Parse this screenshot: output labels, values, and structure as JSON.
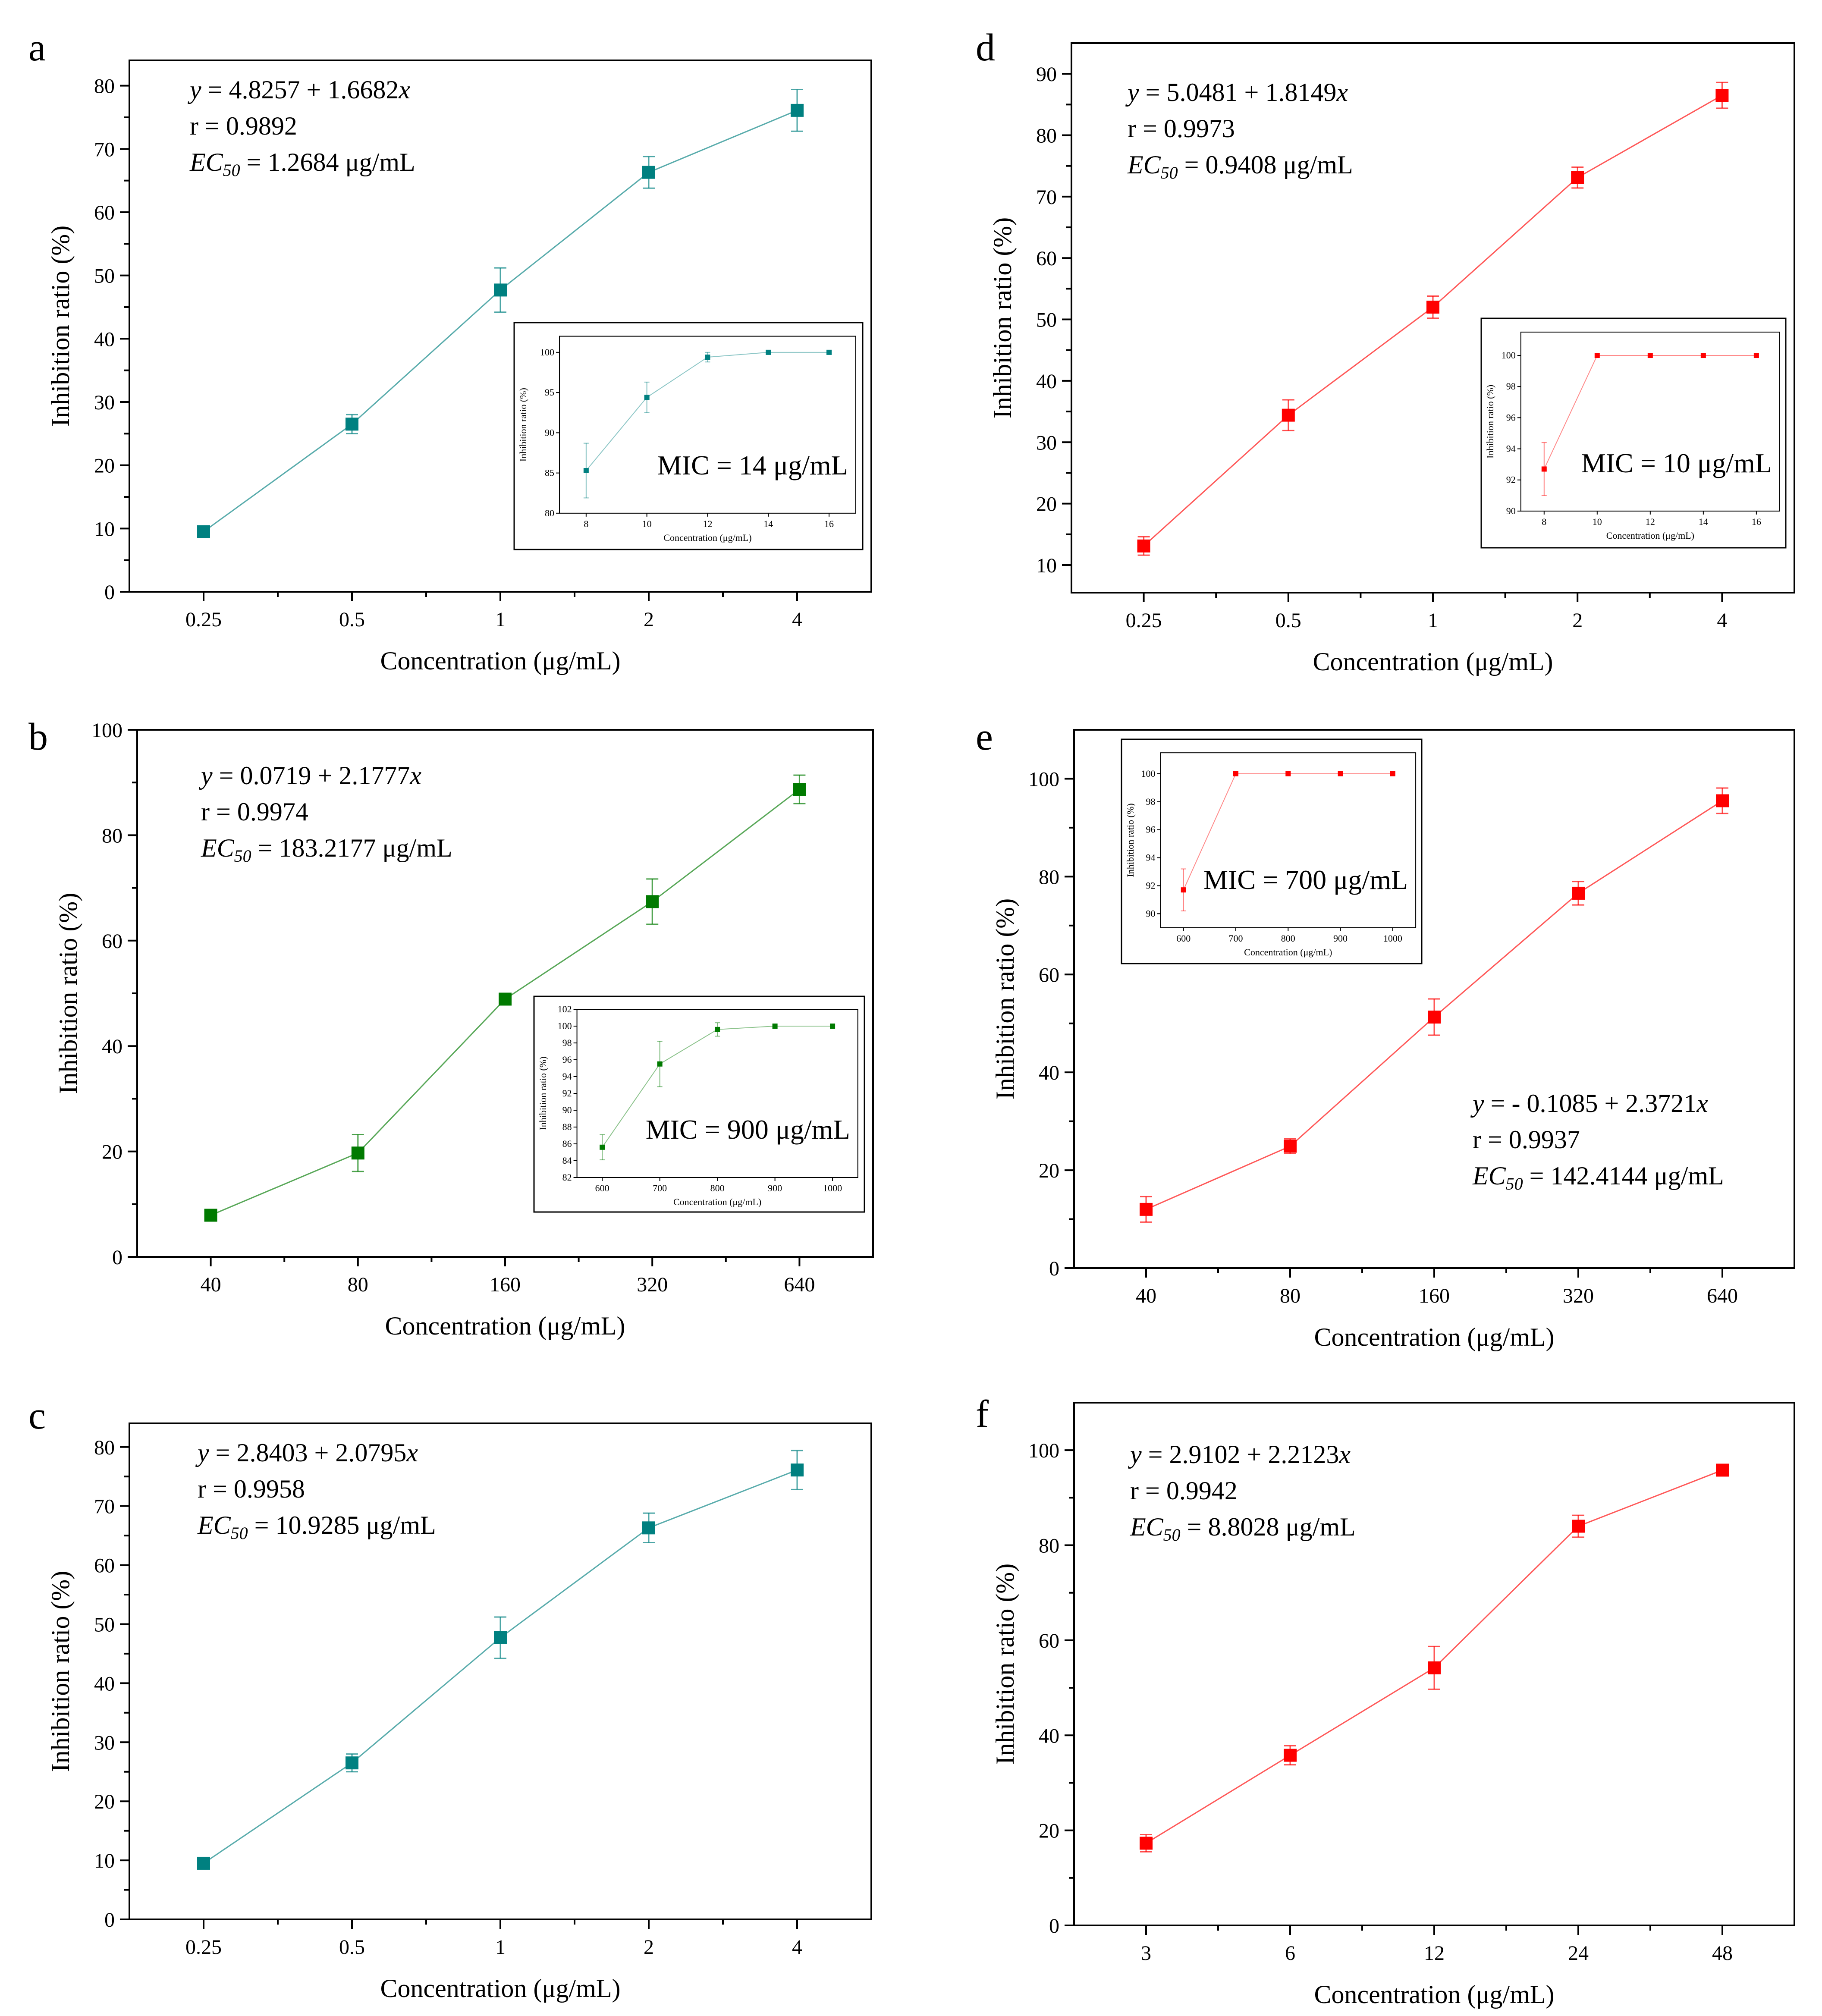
{
  "figure": {
    "ylabel": "Inhibition ratio (%)",
    "xlabel": "Concentration (μg/mL)"
  },
  "chart_data": [
    {
      "panel": "a",
      "type": "line",
      "color": "#008080",
      "xlabel": "Concentration (μg/mL)",
      "ylabel": "Inhibition ratio (%)",
      "categories": [
        "0.25",
        "0.5",
        "1",
        "2",
        "4"
      ],
      "values": [
        9.5,
        26.5,
        47.7,
        66.3,
        76.1
      ],
      "errors": [
        0.8,
        1.5,
        3.5,
        2.5,
        3.3
      ],
      "ylim": [
        0,
        84
      ],
      "yticks": [
        0,
        10,
        20,
        30,
        40,
        50,
        60,
        70,
        80
      ],
      "equation": {
        "y": "y",
        "rhs": " = 4.8257 + 1.6682",
        "x": "x",
        "r": "r = 0.9892",
        "ec": "EC",
        "ec_sub": "50",
        "ec_val": " = 1.2684 μg/mL"
      },
      "inset": {
        "categories": [
          "8",
          "10",
          "12",
          "14",
          "16"
        ],
        "values": [
          85.3,
          94.4,
          99.4,
          100,
          100
        ],
        "errors": [
          3.4,
          1.9,
          0.6,
          0,
          0
        ],
        "ylim": [
          80,
          102
        ],
        "yticks": [
          80,
          85,
          90,
          95,
          100
        ],
        "ylabel": "Inhibition ratio (%)",
        "xlabel": "Concentration (μg/mL)",
        "mic": "MIC = 14 μg/mL"
      }
    },
    {
      "panel": "b",
      "type": "line",
      "color": "#007a00",
      "xlabel": "Concentration (μg/mL)",
      "ylabel": "Inhibition ratio (%)",
      "categories": [
        "40",
        "80",
        "160",
        "320",
        "640"
      ],
      "values": [
        7.9,
        19.7,
        48.9,
        67.4,
        88.7
      ],
      "errors": [
        0.9,
        3.5,
        1.0,
        4.3,
        2.7
      ],
      "ylim": [
        0,
        100
      ],
      "yticks": [
        0,
        20,
        40,
        60,
        80,
        100
      ],
      "equation": {
        "y": "y",
        "rhs": " = 0.0719 + 2.1777",
        "x": "x",
        "r": "r = 0.9974",
        "ec": "EC",
        "ec_sub": "50",
        "ec_val": " = 183.2177 μg/mL"
      },
      "inset": {
        "categories": [
          "600",
          "700",
          "800",
          "900",
          "1000"
        ],
        "values": [
          85.6,
          95.5,
          99.6,
          100,
          100
        ],
        "errors": [
          1.5,
          2.7,
          0.8,
          0,
          0
        ],
        "ylim": [
          82,
          102
        ],
        "yticks": [
          82,
          84,
          86,
          88,
          90,
          92,
          94,
          96,
          98,
          100,
          102
        ],
        "ylabel": "Inhibition ratio (%)",
        "xlabel": "Concentration (μg/mL)",
        "mic": "MIC = 900 μg/mL"
      }
    },
    {
      "panel": "c",
      "type": "line",
      "color": "#008080",
      "xlabel": "Concentration (μg/mL)",
      "ylabel": "Inhibition ratio (%)",
      "categories": [
        "0.25",
        "0.5",
        "1",
        "2",
        "4"
      ],
      "values": [
        9.5,
        26.5,
        47.7,
        66.3,
        76.1
      ],
      "errors": [
        0.8,
        1.5,
        3.5,
        2.5,
        3.3
      ],
      "ylim": [
        0,
        84
      ],
      "yticks": [
        0,
        10,
        20,
        30,
        40,
        50,
        60,
        70,
        80
      ],
      "equation": {
        "y": "y",
        "rhs": " = 2.8403 + 2.0795",
        "x": "x",
        "r": "r = 0.9958",
        "ec": "EC",
        "ec_sub": "50",
        "ec_val": " = 10.9285 μg/mL"
      }
    },
    {
      "panel": "d",
      "type": "line",
      "color": "#ff0000",
      "xlabel": "Concentration (μg/mL)",
      "ylabel": "Inhibition ratio (%)",
      "categories": [
        "0.25",
        "0.5",
        "1",
        "2",
        "4"
      ],
      "values": [
        13.1,
        34.4,
        52.0,
        73.1,
        86.5
      ],
      "errors": [
        1.5,
        2.5,
        1.8,
        1.7,
        2.1
      ],
      "ylim": [
        5.5,
        95
      ],
      "yticks": [
        10,
        20,
        30,
        40,
        50,
        60,
        70,
        80,
        90
      ],
      "equation": {
        "y": "y",
        "rhs": " = 5.0481 + 1.8149",
        "x": "x",
        "r": "r = 0.9973",
        "ec": "EC",
        "ec_sub": "50",
        "ec_val": " = 0.9408 μg/mL"
      },
      "inset": {
        "categories": [
          "8",
          "10",
          "12",
          "14",
          "16"
        ],
        "values": [
          92.7,
          100,
          100,
          100,
          100
        ],
        "errors": [
          1.7,
          0,
          0,
          0,
          0
        ],
        "ylim": [
          90,
          101.5
        ],
        "yticks": [
          90,
          92,
          94,
          96,
          98,
          100
        ],
        "ylabel": "Inhibition ratio (%)",
        "xlabel": "Concentration (μg/mL)",
        "mic": "MIC = 10 μg/mL"
      }
    },
    {
      "panel": "e",
      "type": "line",
      "color": "#ff0000",
      "xlabel": "Concentration (μg/mL)",
      "ylabel": "Inhibition ratio (%)",
      "categories": [
        "40",
        "80",
        "160",
        "320",
        "640"
      ],
      "values": [
        12.0,
        24.9,
        51.3,
        76.6,
        95.5
      ],
      "errors": [
        2.6,
        1.5,
        3.7,
        2.4,
        2.6
      ],
      "ylim": [
        0,
        110
      ],
      "yticks": [
        0,
        20,
        40,
        60,
        80,
        100
      ],
      "equation": {
        "y": "y",
        "rhs": " = - 0.1085 + 2.3721",
        "x": "x",
        "r": "r = 0.9937",
        "ec": "EC",
        "ec_sub": "50",
        "ec_val": " = 142.4144 μg/mL"
      },
      "inset": {
        "categories": [
          "600",
          "700",
          "800",
          "900",
          "1000"
        ],
        "values": [
          91.7,
          100,
          100,
          100,
          100
        ],
        "errors": [
          1.5,
          0,
          0,
          0,
          0
        ],
        "ylim": [
          89,
          101.5
        ],
        "yticks": [
          90,
          92,
          94,
          96,
          98,
          100
        ],
        "ylabel": "Inhibition ratio (%)",
        "xlabel": "Concentration (μg/mL)",
        "mic": "MIC = 700 μg/mL"
      }
    },
    {
      "panel": "f",
      "type": "line",
      "color": "#ff0000",
      "xlabel": "Concentration (μg/mL)",
      "ylabel": "Inhibition ratio (%)",
      "categories": [
        "3",
        "6",
        "12",
        "24",
        "48"
      ],
      "values": [
        17.3,
        35.8,
        54.2,
        84.0,
        95.8
      ],
      "errors": [
        1.8,
        2.0,
        4.5,
        2.3,
        1.2
      ],
      "ylim": [
        0,
        110
      ],
      "yticks": [
        0,
        20,
        40,
        60,
        80,
        100
      ],
      "equation": {
        "y": "y",
        "rhs": " = 2.9102 + 2.2123",
        "x": "x",
        "r": "r = 0.9942",
        "ec": "EC",
        "ec_sub": "50",
        "ec_val": " = 8.8028 μg/mL"
      }
    }
  ]
}
